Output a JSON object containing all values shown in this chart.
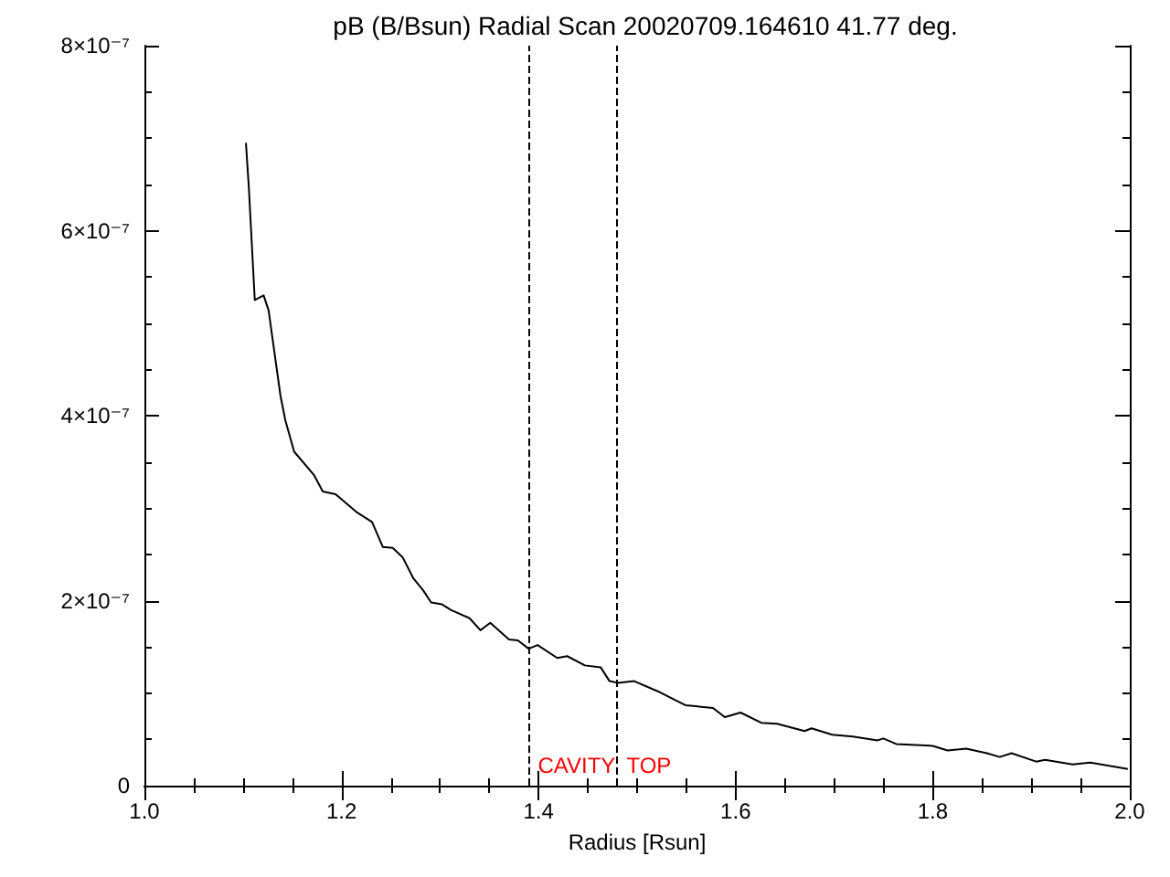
{
  "chart_data": {
    "type": "line",
    "title": "pB (B/Bsun) Radial Scan 20020709.164610 41.77 deg.",
    "xlabel": "Radius [Rsun]",
    "series": [
      {
        "color": "#000000",
        "x": [
          1.103,
          1.106,
          1.112,
          1.121,
          1.126,
          1.138,
          1.143,
          1.152,
          1.172,
          1.181,
          1.194,
          1.215,
          1.231,
          1.242,
          1.252,
          1.262,
          1.273,
          1.283,
          1.291,
          1.302,
          1.311,
          1.33,
          1.341,
          1.351,
          1.37,
          1.379,
          1.39,
          1.399,
          1.419,
          1.429,
          1.447,
          1.463,
          1.472,
          1.481,
          1.497,
          1.521,
          1.549,
          1.577,
          1.589,
          1.605,
          1.626,
          1.642,
          1.67,
          1.677,
          1.698,
          1.719,
          1.744,
          1.75,
          1.763,
          1.8,
          1.815,
          1.834,
          1.855,
          1.868,
          1.88,
          1.905,
          1.914,
          1.942,
          1.96,
          1.998
        ],
        "values": [
          6.95e-07,
          6.46e-07,
          5.25e-07,
          5.3e-07,
          5.14e-07,
          4.22e-07,
          3.95e-07,
          3.61e-07,
          3.36e-07,
          3.18e-07,
          3.15e-07,
          2.96e-07,
          2.85e-07,
          2.58e-07,
          2.57e-07,
          2.47e-07,
          2.24e-07,
          2.11e-07,
          1.98e-07,
          1.96e-07,
          1.9e-07,
          1.81e-07,
          1.68e-07,
          1.76e-07,
          1.58e-07,
          1.57e-07,
          1.48e-07,
          1.52e-07,
          1.38e-07,
          1.4e-07,
          1.3e-07,
          1.28e-07,
          1.13e-07,
          1.11e-07,
          1.13e-07,
          1.02e-07,
          8.7e-08,
          8.4e-08,
          7.4e-08,
          7.9e-08,
          6.8e-08,
          6.7e-08,
          5.9e-08,
          6.2e-08,
          5.5e-08,
          5.3e-08,
          4.9e-08,
          5.1e-08,
          4.5e-08,
          4.3e-08,
          3.8e-08,
          4e-08,
          3.5e-08,
          3.1e-08,
          3.5e-08,
          2.6e-08,
          2.8e-08,
          2.3e-08,
          2.5e-08,
          1.8e-08
        ]
      }
    ],
    "xlim": [
      1.0,
      2.0
    ],
    "xticks": [
      {
        "value": 1,
        "label": "1.0"
      },
      1.2,
      1.4,
      1.6,
      1.8,
      {
        "value": 2,
        "label": "2.0"
      }
    ],
    "ylim": [
      0,
      8e-07
    ],
    "yticks": [
      0,
      {
        "value": 2e-07,
        "label": "2×10⁻⁷"
      },
      {
        "value": 4e-07,
        "label": "4×10⁻⁷"
      },
      {
        "value": 6e-07,
        "label": "6×10⁻⁷"
      },
      {
        "value": 8e-07,
        "label": "8×10⁻⁷"
      }
    ],
    "ref_lines": [
      {
        "axis": "x",
        "value": 1.388,
        "label": "CAVITY",
        "color": "#000000",
        "line_style": "dashed"
      },
      {
        "axis": "x",
        "value": 1.475,
        "label": "TOP",
        "color": "#000000",
        "line_style": "dashed"
      }
    ],
    "grid": false,
    "marker": "none",
    "line_style": "solid"
  }
}
